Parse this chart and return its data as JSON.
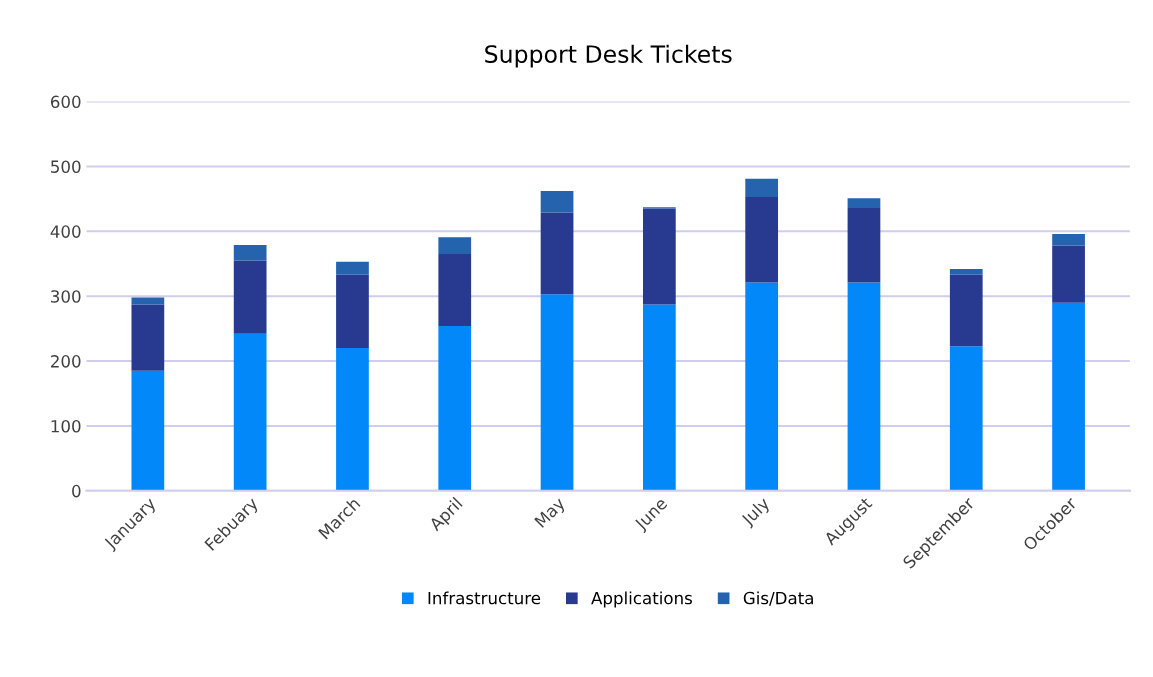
{
  "chart_data": {
    "type": "bar",
    "stacked": true,
    "title": "Support Desk Tickets",
    "categories": [
      "January",
      "Febuary",
      "March",
      "April",
      "May",
      "June",
      "July",
      "August",
      "September",
      "October"
    ],
    "series": [
      {
        "name": "Infrastructure",
        "color": "#0288f8",
        "values": [
          185,
          242,
          220,
          254,
          303,
          287,
          321,
          321,
          223,
          290
        ]
      },
      {
        "name": "Applications",
        "color": "#283a8f",
        "values": [
          102,
          113,
          113,
          111,
          126,
          148,
          132,
          115,
          110,
          88
        ]
      },
      {
        "name": "Gis/Data",
        "color": "#2563ae",
        "values": [
          11,
          24,
          20,
          26,
          33,
          2,
          28,
          15,
          9,
          18
        ]
      }
    ],
    "ylim": [
      0,
      600
    ],
    "yticks": [
      0,
      100,
      200,
      300,
      400,
      500,
      600
    ],
    "grid": "y",
    "legend": "bottom"
  }
}
